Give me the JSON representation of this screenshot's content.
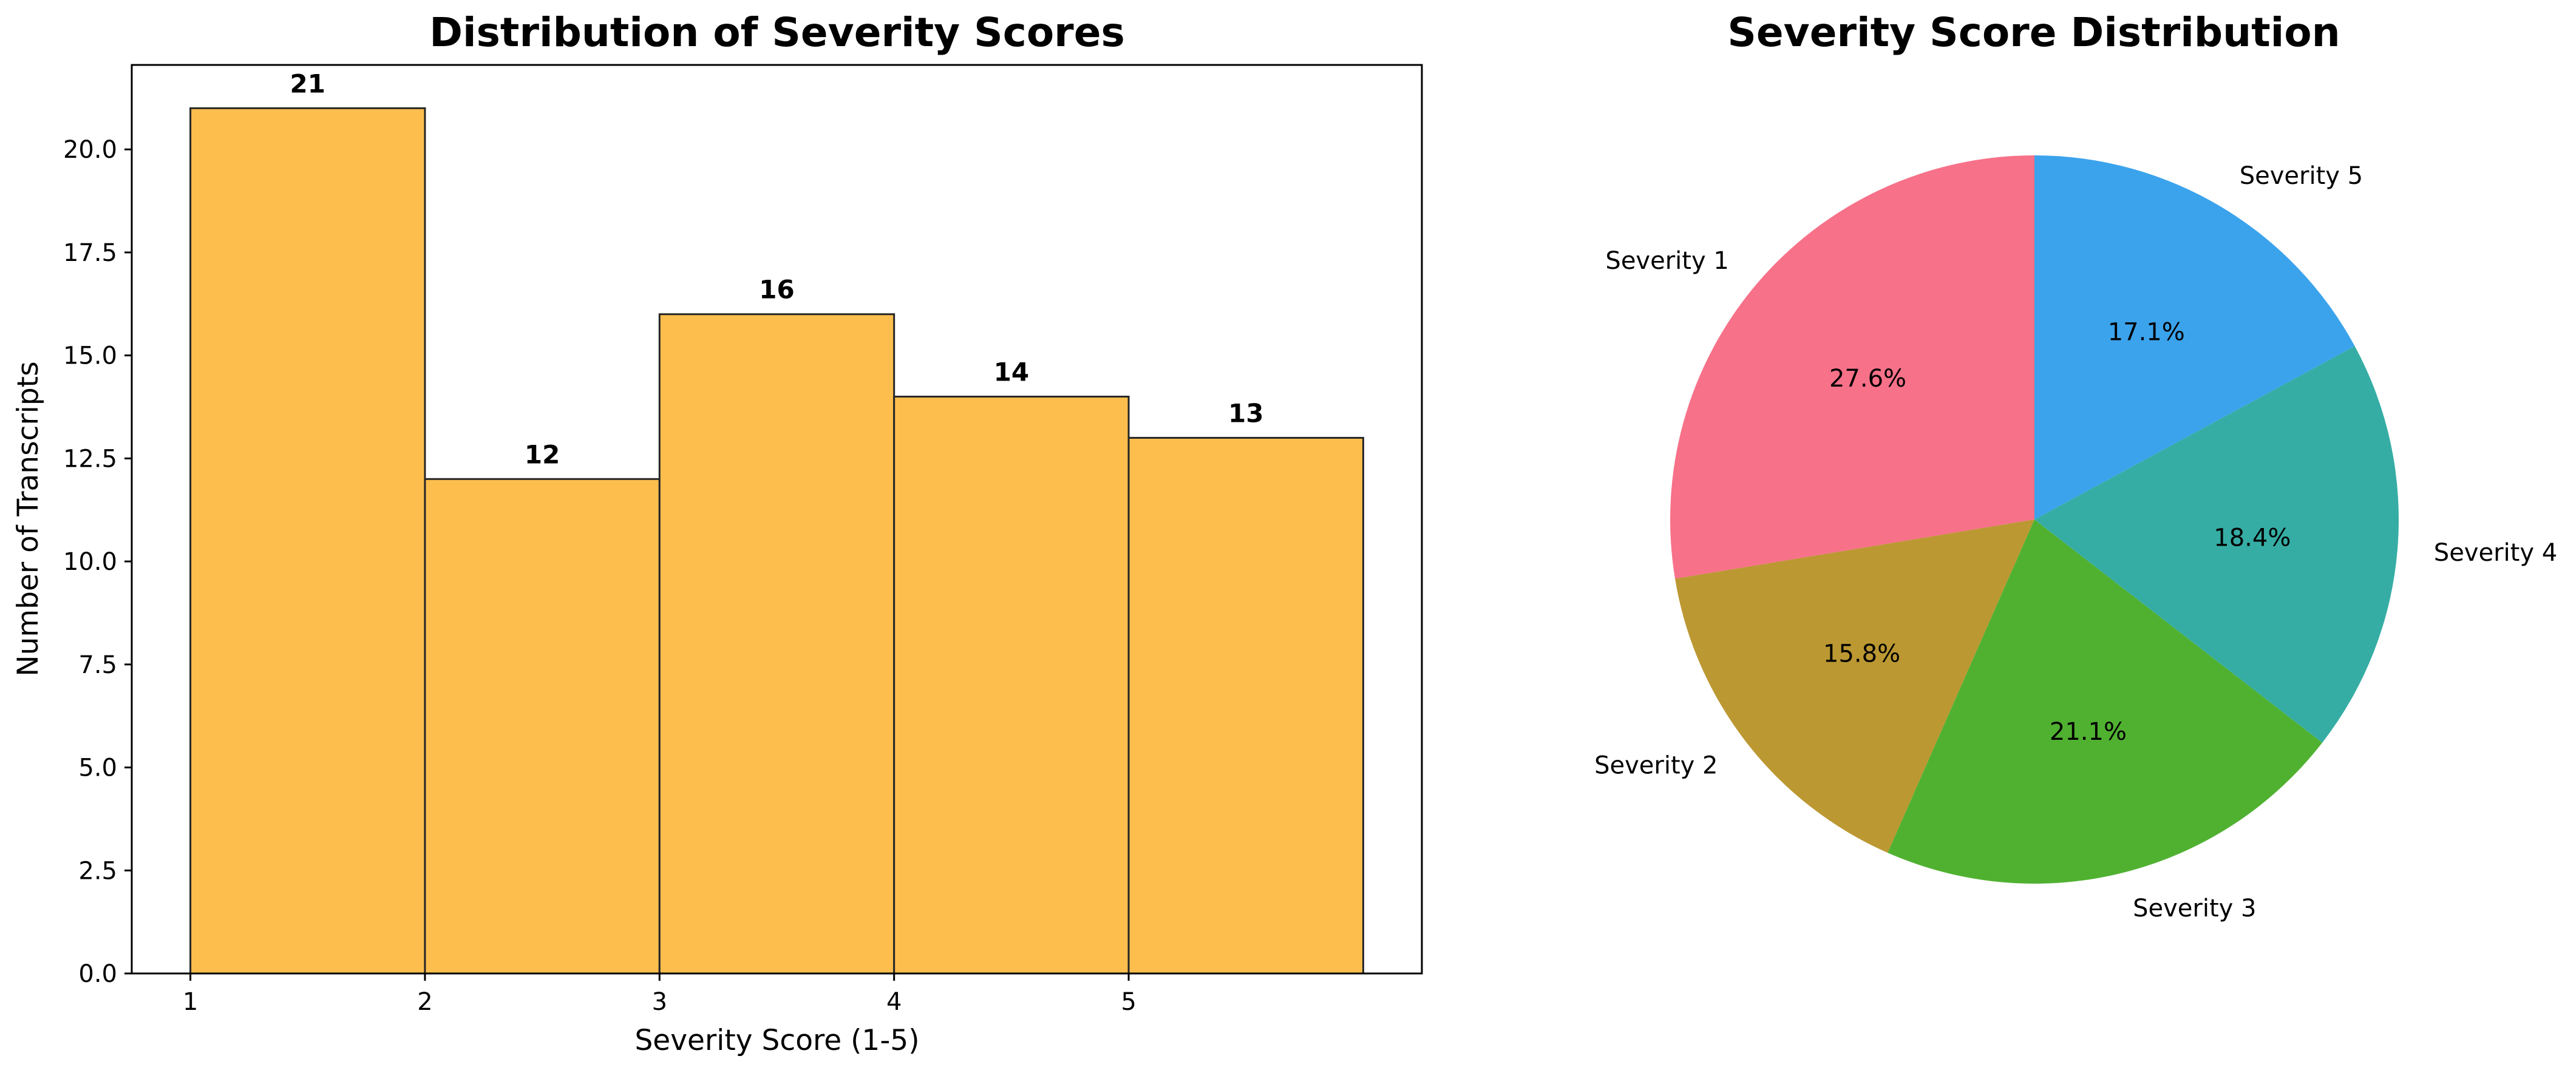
{
  "chart_data": [
    {
      "type": "bar",
      "title": "Distribution of Severity Scores",
      "xlabel": "Severity Score (1-5)",
      "ylabel": "Number of Transcripts",
      "bins": [
        [
          1,
          2
        ],
        [
          2,
          3
        ],
        [
          3,
          4
        ],
        [
          4,
          5
        ],
        [
          5,
          6
        ]
      ],
      "values": [
        21,
        12,
        16,
        14,
        13
      ],
      "data_labels": [
        "21",
        "12",
        "16",
        "14",
        "13"
      ],
      "xlim": [
        0.75,
        6.25
      ],
      "ylim": [
        0,
        22.05
      ],
      "xticks": [
        1,
        2,
        3,
        4,
        5
      ],
      "xtick_labels": [
        "1",
        "2",
        "3",
        "4",
        "5"
      ],
      "yticks": [
        0,
        2.5,
        5,
        7.5,
        10,
        12.5,
        15,
        17.5,
        20
      ],
      "ytick_labels": [
        "0.0",
        "2.5",
        "5.0",
        "7.5",
        "10.0",
        "12.5",
        "15.0",
        "17.5",
        "20.0"
      ],
      "bar_color": "#FDBE4E",
      "edge_color": "#262626",
      "grid": false
    },
    {
      "type": "pie",
      "title": "Severity Score Distribution",
      "labels": [
        "Severity 1",
        "Severity 2",
        "Severity 3",
        "Severity 4",
        "Severity 5"
      ],
      "values": [
        27.6,
        15.8,
        21.1,
        18.4,
        17.1
      ],
      "pct_labels": [
        "27.6%",
        "15.8%",
        "21.1%",
        "18.4%",
        "17.1%"
      ],
      "colors": [
        "#F77189",
        "#BB9832",
        "#50B131",
        "#36ADA4",
        "#3BA3EC"
      ],
      "start_angle": 90,
      "direction": "counterclockwise"
    }
  ]
}
